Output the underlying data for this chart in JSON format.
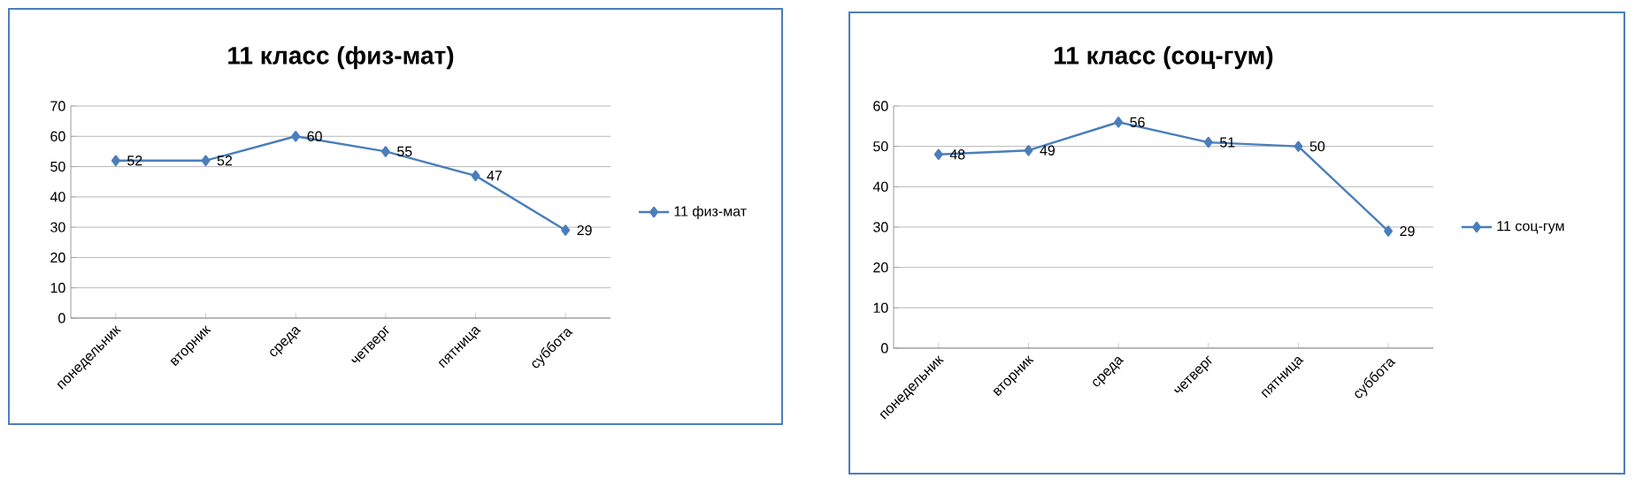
{
  "chart_data": [
    {
      "type": "line",
      "title": "11 класс (физ-мат)",
      "categories": [
        "понедельник",
        "вторник",
        "среда",
        "четверг",
        "пятница",
        "суббота"
      ],
      "series": [
        {
          "name": "11 физ-мат",
          "color": "#4a7ebb",
          "values": [
            52,
            52,
            60,
            55,
            47,
            29
          ]
        }
      ],
      "ylim": [
        0,
        70
      ],
      "yticks": [
        0,
        10,
        20,
        30,
        40,
        50,
        60,
        70
      ],
      "grid": "y",
      "legend": "right",
      "marker": "diamond",
      "data_labels": true
    },
    {
      "type": "line",
      "title": "11 класс (соц-гум)",
      "categories": [
        "понедельник",
        "вторник",
        "среда",
        "четверг",
        "пятница",
        "суббота"
      ],
      "series": [
        {
          "name": "11 соц-гум",
          "color": "#4a7ebb",
          "values": [
            48,
            49,
            56,
            51,
            50,
            29
          ]
        }
      ],
      "ylim": [
        0,
        60
      ],
      "yticks": [
        0,
        10,
        20,
        30,
        40,
        50,
        60
      ],
      "grid": "y",
      "legend": "right",
      "marker": "diamond",
      "data_labels": true
    }
  ]
}
